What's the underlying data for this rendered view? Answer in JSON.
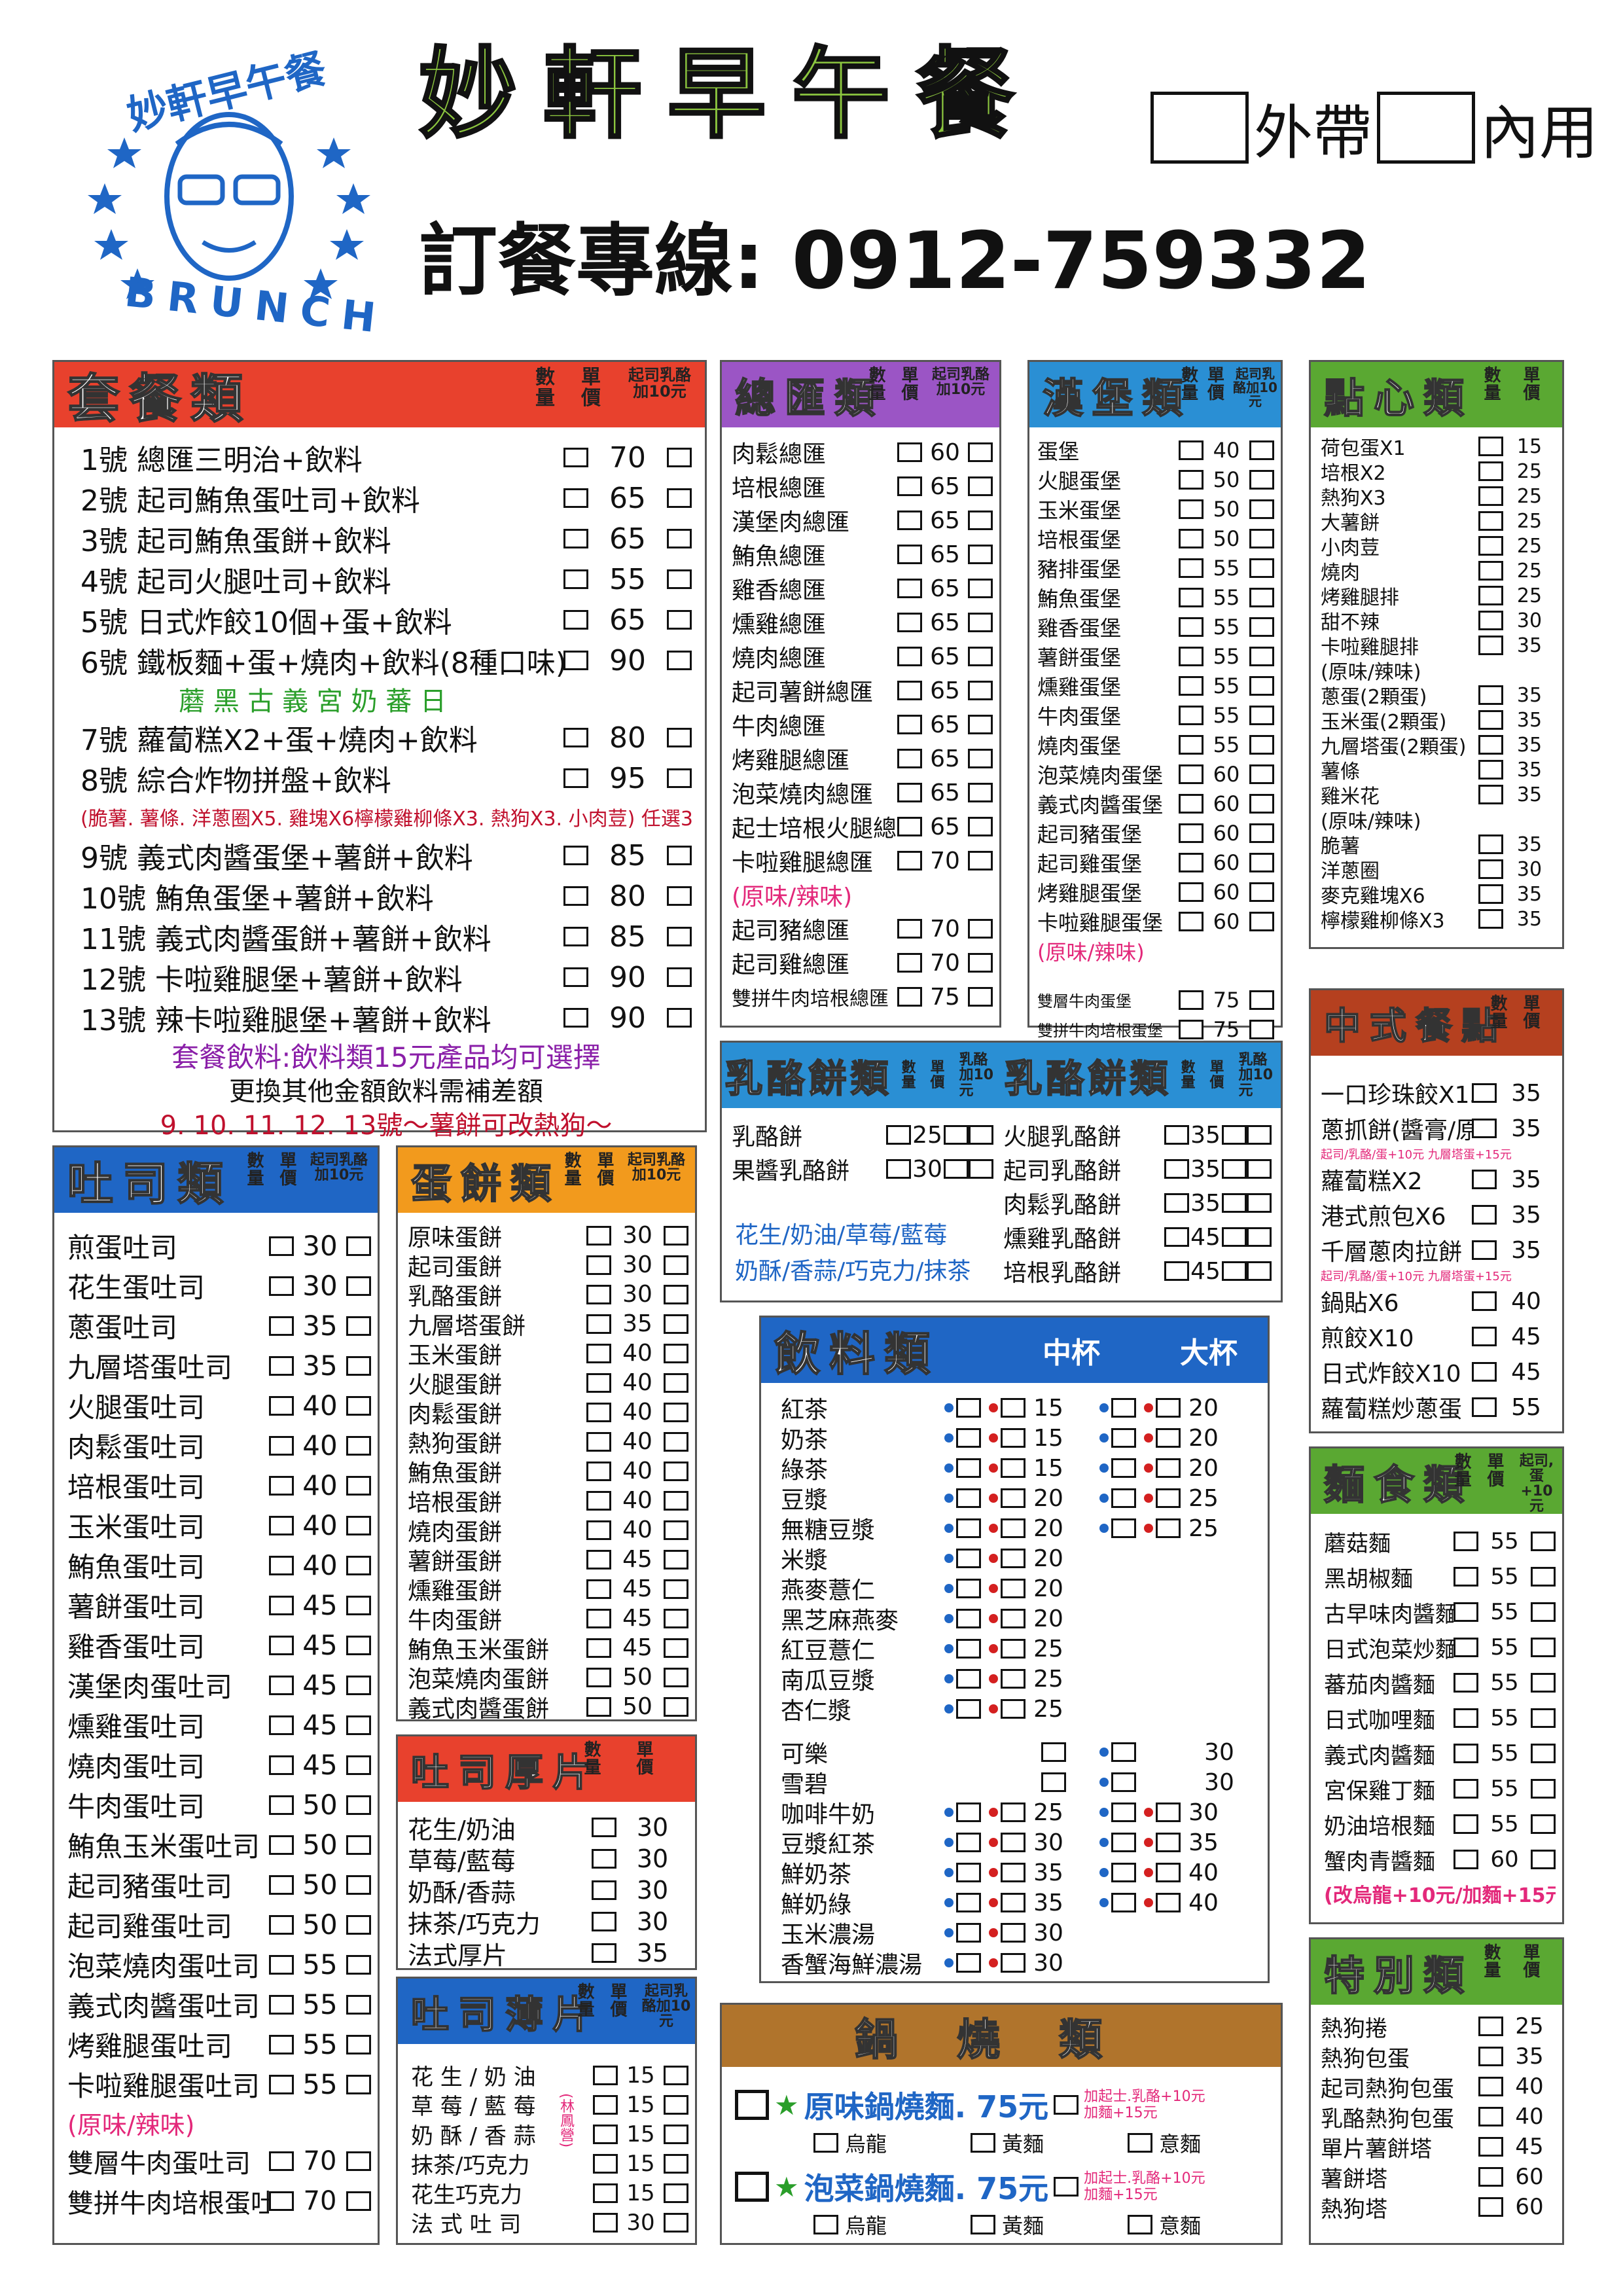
{
  "header": {
    "logo_text": "妙軒早午餐",
    "logo_sub": "BRUNCH",
    "title": "妙軒早午餐",
    "takeout": "外帶",
    "dinein": "內用",
    "hotline": "訂餐專線: 0912-759332"
  },
  "combo": {
    "title": "套餐類",
    "col_qty": "數量",
    "col_price": "單價",
    "col_cheese": "起司乳酪加10元",
    "items": [
      {
        "name": "1號  總匯三明治+飲料",
        "price": "70"
      },
      {
        "name": "2號  起司鮪魚蛋吐司+飲料",
        "price": "65"
      },
      {
        "name": "3號  起司鮪魚蛋餅+飲料",
        "price": "65"
      },
      {
        "name": "4號  起司火腿吐司+飲料",
        "price": "55"
      },
      {
        "name": "5號  日式炸餃10個+蛋+飲料",
        "price": "65"
      },
      {
        "name": "6號  鐵板麵+蛋+燒肉+飲料(8種口味)",
        "price": "90"
      },
      {
        "name": "7號  蘿蔔糕X2+蛋+燒肉+飲料",
        "price": "80"
      },
      {
        "name": "8號  綜合炸物拼盤+飲料",
        "price": "95"
      },
      {
        "name": "9號  義式肉醬蛋堡+薯餅+飲料",
        "price": "85"
      },
      {
        "name": "10號  鮪魚蛋堡+薯餅+飲料",
        "price": "80"
      },
      {
        "name": "11號  義式肉醬蛋餅+薯餅+飲料",
        "price": "85"
      },
      {
        "name": "12號  卡啦雞腿堡+薯餅+飲料",
        "price": "90"
      },
      {
        "name": "13號  辣卡啦雞腿堡+薯餅+飲料",
        "price": "90"
      }
    ],
    "note6": "蘑 黑 古 義 宮 奶 蕃 日",
    "note8": "(脆薯. 薯條. 洋蔥圈X5. 雞塊X6檸檬雞柳條X3. 熱狗X3. 小肉荳) 任選3樣",
    "foot1": "套餐飲料:飲料類15元產品均可選擇",
    "foot2": "更換其他金額飲料需補差額",
    "foot3": "9. 10. 11. 12. 13號～薯餅可改熱狗～"
  },
  "toast": {
    "title": "吐司類",
    "col_qty": "數量",
    "col_price": "單價",
    "col_cheese": "起司乳酪加10元",
    "items": [
      {
        "name": "煎蛋吐司",
        "price": "30"
      },
      {
        "name": "花生蛋吐司",
        "price": "30"
      },
      {
        "name": "蔥蛋吐司",
        "price": "35"
      },
      {
        "name": "九層塔蛋吐司",
        "price": "35"
      },
      {
        "name": "火腿蛋吐司",
        "price": "40"
      },
      {
        "name": "肉鬆蛋吐司",
        "price": "40"
      },
      {
        "name": "培根蛋吐司",
        "price": "40"
      },
      {
        "name": "玉米蛋吐司",
        "price": "40"
      },
      {
        "name": "鮪魚蛋吐司",
        "price": "40"
      },
      {
        "name": "薯餅蛋吐司",
        "price": "45"
      },
      {
        "name": "雞香蛋吐司",
        "price": "45"
      },
      {
        "name": "漢堡肉蛋吐司",
        "price": "45"
      },
      {
        "name": "燻雞蛋吐司",
        "price": "45"
      },
      {
        "name": "燒肉蛋吐司",
        "price": "45"
      },
      {
        "name": "牛肉蛋吐司",
        "price": "50"
      },
      {
        "name": "鮪魚玉米蛋吐司",
        "price": "50"
      },
      {
        "name": "起司豬蛋吐司",
        "price": "50"
      },
      {
        "name": "起司雞蛋吐司",
        "price": "50"
      },
      {
        "name": "泡菜燒肉蛋吐司",
        "price": "55"
      },
      {
        "name": "義式肉醬蛋吐司",
        "price": "55"
      },
      {
        "name": "烤雞腿蛋吐司",
        "price": "55"
      },
      {
        "name": "卡啦雞腿蛋吐司",
        "price": "55"
      }
    ],
    "note": "(原味/辣味)",
    "extra": [
      {
        "name": "雙層牛肉蛋吐司",
        "price": "70"
      },
      {
        "name": "雙拼牛肉培根蛋吐司",
        "price": "70"
      }
    ]
  },
  "eggroll": {
    "title": "蛋餅類",
    "col_qty": "數量",
    "col_price": "單價",
    "col_cheese": "起司乳酪加10元",
    "items": [
      {
        "name": "原味蛋餅",
        "price": "30"
      },
      {
        "name": "起司蛋餅",
        "price": "30"
      },
      {
        "name": "乳酪蛋餅",
        "price": "30"
      },
      {
        "name": "九層塔蛋餅",
        "price": "35"
      },
      {
        "name": "玉米蛋餅",
        "price": "40"
      },
      {
        "name": "火腿蛋餅",
        "price": "40"
      },
      {
        "name": "肉鬆蛋餅",
        "price": "40"
      },
      {
        "name": "熱狗蛋餅",
        "price": "40"
      },
      {
        "name": "鮪魚蛋餅",
        "price": "40"
      },
      {
        "name": "培根蛋餅",
        "price": "40"
      },
      {
        "name": "燒肉蛋餅",
        "price": "40"
      },
      {
        "name": "薯餅蛋餅",
        "price": "45"
      },
      {
        "name": "燻雞蛋餅",
        "price": "45"
      },
      {
        "name": "牛肉蛋餅",
        "price": "45"
      },
      {
        "name": "鮪魚玉米蛋餅",
        "price": "45"
      },
      {
        "name": "泡菜燒肉蛋餅",
        "price": "50"
      },
      {
        "name": "義式肉醬蛋餅",
        "price": "50"
      }
    ]
  },
  "thick": {
    "title": "吐司厚片",
    "col_qty": "數量",
    "col_price": "單價",
    "items": [
      {
        "name": "花生/奶油",
        "price": "30"
      },
      {
        "name": "草莓/藍莓",
        "price": "30"
      },
      {
        "name": "奶酥/香蒜",
        "price": "30"
      },
      {
        "name": "抹茶/巧克力",
        "price": "30"
      },
      {
        "name": "法式厚片",
        "price": "35"
      }
    ]
  },
  "thin": {
    "title": "吐司薄片",
    "col_qty": "數量",
    "col_price": "單價",
    "col_cheese": "起司乳酪加10元",
    "side_note": "(林鳳營)",
    "items": [
      {
        "name": "花 生 / 奶 油",
        "price": "15"
      },
      {
        "name": "草 莓 / 藍 莓",
        "price": "15"
      },
      {
        "name": "奶 酥 / 香 蒜",
        "price": "15"
      },
      {
        "name": "抹茶/巧克力",
        "price": "15"
      },
      {
        "name": "花生巧克力",
        "price": "15"
      },
      {
        "name": "法 式 吐 司",
        "price": "30"
      }
    ]
  },
  "club": {
    "title": "總匯類",
    "col_qty": "數量",
    "col_price": "單價",
    "col_cheese": "起司乳酪加10元",
    "items": [
      {
        "name": "肉鬆總匯",
        "price": "60"
      },
      {
        "name": "培根總匯",
        "price": "65"
      },
      {
        "name": "漢堡肉總匯",
        "price": "65"
      },
      {
        "name": "鮪魚總匯",
        "price": "65"
      },
      {
        "name": "雞香總匯",
        "price": "65"
      },
      {
        "name": "燻雞總匯",
        "price": "65"
      },
      {
        "name": "燒肉總匯",
        "price": "65"
      },
      {
        "name": "起司薯餅總匯",
        "price": "65"
      },
      {
        "name": "牛肉總匯",
        "price": "65"
      },
      {
        "name": "烤雞腿總匯",
        "price": "65"
      },
      {
        "name": "泡菜燒肉總匯",
        "price": "65"
      },
      {
        "name": "起士培根火腿總匯",
        "price": "65"
      },
      {
        "name": "卡啦雞腿總匯",
        "price": "70"
      }
    ],
    "note": "(原味/辣味)",
    "extra": [
      {
        "name": "起司豬總匯",
        "price": "70"
      },
      {
        "name": "起司雞總匯",
        "price": "70"
      },
      {
        "name": "雙拼牛肉培根總匯",
        "price": "75"
      }
    ]
  },
  "burger": {
    "title": "漢堡類",
    "col_qty": "數量",
    "col_price": "單價",
    "col_cheese": "起司乳酪加10元",
    "items": [
      {
        "name": "蛋堡",
        "price": "40"
      },
      {
        "name": "火腿蛋堡",
        "price": "50"
      },
      {
        "name": "玉米蛋堡",
        "price": "50"
      },
      {
        "name": "培根蛋堡",
        "price": "50"
      },
      {
        "name": "豬排蛋堡",
        "price": "55"
      },
      {
        "name": "鮪魚蛋堡",
        "price": "55"
      },
      {
        "name": "雞香蛋堡",
        "price": "55"
      },
      {
        "name": "薯餅蛋堡",
        "price": "55"
      },
      {
        "name": "燻雞蛋堡",
        "price": "55"
      },
      {
        "name": "牛肉蛋堡",
        "price": "55"
      },
      {
        "name": "燒肉蛋堡",
        "price": "55"
      },
      {
        "name": "泡菜燒肉蛋堡",
        "price": "60"
      },
      {
        "name": "義式肉醬蛋堡",
        "price": "60"
      },
      {
        "name": "起司豬蛋堡",
        "price": "60"
      },
      {
        "name": "起司雞蛋堡",
        "price": "60"
      },
      {
        "name": "烤雞腿蛋堡",
        "price": "60"
      },
      {
        "name": "卡啦雞腿蛋堡",
        "price": "60"
      }
    ],
    "note": "(原味/辣味)",
    "extra": [
      {
        "name": "雙層牛肉蛋堡",
        "price": "75"
      },
      {
        "name": "雙拼牛肉培根蛋堡",
        "price": "75"
      }
    ]
  },
  "snack": {
    "title": "點心類",
    "col_qty": "數量",
    "col_price": "單價",
    "items": [
      {
        "name": "荷包蛋X1",
        "price": "15"
      },
      {
        "name": "培根X2",
        "price": "25"
      },
      {
        "name": "熱狗X3",
        "price": "25"
      },
      {
        "name": "大薯餅",
        "price": "25"
      },
      {
        "name": "小肉荳",
        "price": "25"
      },
      {
        "name": "燒肉",
        "price": "25"
      },
      {
        "name": "烤雞腿排",
        "price": "25"
      },
      {
        "name": "甜不辣",
        "price": "30"
      },
      {
        "name": "卡啦雞腿排",
        "price": "35"
      },
      {
        "name": "(原味/辣味)",
        "price": ""
      },
      {
        "name": "蔥蛋(2顆蛋)",
        "price": "35"
      },
      {
        "name": "玉米蛋(2顆蛋)",
        "price": "35"
      },
      {
        "name": "九層塔蛋(2顆蛋)",
        "price": "35"
      },
      {
        "name": "薯條",
        "price": "35"
      },
      {
        "name": "雞米花",
        "price": "35"
      },
      {
        "name": "(原味/辣味)",
        "price": ""
      },
      {
        "name": "脆薯",
        "price": "35"
      },
      {
        "name": "洋蔥圈",
        "price": "30"
      },
      {
        "name": "麥克雞塊X6",
        "price": "35"
      },
      {
        "name": "檸檬雞柳條X3",
        "price": "35"
      }
    ]
  },
  "chinese": {
    "title": "中式餐點",
    "col_qty": "數量",
    "col_price": "單價",
    "items": [
      {
        "name": "一口珍珠餃X15",
        "price": "35",
        "sub": ""
      },
      {
        "name": "蔥抓餅(醬膏/原味)",
        "price": "35",
        "sub": "起司/乳酪/蛋+10元   九層塔蛋+15元"
      },
      {
        "name": "蘿蔔糕X2",
        "price": "35",
        "sub": ""
      },
      {
        "name": "港式煎包X6",
        "price": "35",
        "sub": ""
      },
      {
        "name": "千層蔥肉拉餅",
        "price": "35",
        "sub": "起司/乳酪/蛋+10元   九層塔蛋+15元"
      },
      {
        "name": "鍋貼X6",
        "price": "40",
        "sub": ""
      },
      {
        "name": "煎餃X10",
        "price": "45",
        "sub": ""
      },
      {
        "name": "日式炸餃X10",
        "price": "45",
        "sub": ""
      },
      {
        "name": "蘿蔔糕炒蔥蛋",
        "price": "55",
        "sub": ""
      }
    ]
  },
  "noodle": {
    "title": "麵食類",
    "col_qty": "數量",
    "col_price": "單價",
    "col_cheese": "起司,蛋+10元",
    "items": [
      {
        "name": "蘑菇麵",
        "price": "55"
      },
      {
        "name": "黑胡椒麵",
        "price": "55"
      },
      {
        "name": "古早味肉醬麵",
        "price": "55"
      },
      {
        "name": "日式泡菜炒麵",
        "price": "55"
      },
      {
        "name": "蕃茄肉醬麵",
        "price": "55"
      },
      {
        "name": "日式咖哩麵",
        "price": "55"
      },
      {
        "name": "義式肉醬麵",
        "price": "55"
      },
      {
        "name": "宮保雞丁麵",
        "price": "55"
      },
      {
        "name": "奶油培根麵",
        "price": "55"
      },
      {
        "name": "蟹肉青醬麵",
        "price": "60"
      }
    ],
    "note": "(改烏龍+10元/加麵+15元)"
  },
  "special": {
    "title": "特別類",
    "col_qty": "數量",
    "col_price": "單價",
    "items": [
      {
        "name": "熱狗捲",
        "price": "25"
      },
      {
        "name": "熱狗包蛋",
        "price": "35"
      },
      {
        "name": "起司熱狗包蛋",
        "price": "40"
      },
      {
        "name": "乳酪熱狗包蛋",
        "price": "40"
      },
      {
        "name": "單片薯餅塔",
        "price": "45"
      },
      {
        "name": "薯餅塔",
        "price": "60"
      },
      {
        "name": "熱狗塔",
        "price": "60"
      }
    ]
  },
  "pancake": {
    "title": "乳酪餅類",
    "col_qty": "數量",
    "col_price": "單價",
    "col_cheese": "乳酪加10元",
    "left": [
      {
        "name": "乳酪餅",
        "price": "25"
      },
      {
        "name": "果醬乳酪餅",
        "price": "30"
      }
    ],
    "right": [
      {
        "name": "火腿乳酪餅",
        "price": "35"
      },
      {
        "name": "起司乳酪餅",
        "price": "35"
      },
      {
        "name": "肉鬆乳酪餅",
        "price": "35"
      },
      {
        "name": "燻雞乳酪餅",
        "price": "45"
      },
      {
        "name": "培根乳酪餅",
        "price": "45"
      }
    ],
    "flavors1": "花生/奶油/草莓/藍莓",
    "flavors2": "奶酥/香蒜/巧克力/抹茶"
  },
  "drink": {
    "title": "飲料類",
    "col_mid": "中杯",
    "col_large": "大杯",
    "items": [
      {
        "name": "紅茶",
        "mid": "15",
        "large": "20"
      },
      {
        "name": "奶茶",
        "mid": "15",
        "large": "20"
      },
      {
        "name": "綠茶",
        "mid": "15",
        "large": "20"
      },
      {
        "name": "豆漿",
        "mid": "20",
        "large": "25"
      },
      {
        "name": "無糖豆漿",
        "mid": "20",
        "large": "25"
      },
      {
        "name": "米漿",
        "mid": "20",
        "large": ""
      },
      {
        "name": "燕麥薏仁",
        "mid": "20",
        "large": ""
      },
      {
        "name": "黑芝麻燕麥",
        "mid": "20",
        "large": ""
      },
      {
        "name": "紅豆薏仁",
        "mid": "25",
        "large": ""
      },
      {
        "name": "南瓜豆漿",
        "mid": "25",
        "large": ""
      },
      {
        "name": "杏仁漿",
        "mid": "25",
        "large": ""
      },
      {
        "name": "可樂",
        "mid": "",
        "large": "30"
      },
      {
        "name": "雪碧",
        "mid": "",
        "large": "30"
      },
      {
        "name": "咖啡牛奶",
        "mid": "25",
        "large": "30"
      },
      {
        "name": "豆漿紅茶",
        "mid": "30",
        "large": "35"
      },
      {
        "name": "鮮奶茶",
        "mid": "35",
        "large": "40"
      },
      {
        "name": "鮮奶綠",
        "mid": "35",
        "large": "40"
      },
      {
        "name": "玉米濃湯",
        "mid": "30",
        "large": ""
      },
      {
        "name": "香蟹海鮮濃湯",
        "mid": "30",
        "large": ""
      }
    ]
  },
  "pot": {
    "title": "鍋燒類",
    "items": [
      {
        "name": "原味鍋燒麵. 75元",
        "addon1": "加起士.乳酪+10元",
        "addon2": "加麵+15元"
      },
      {
        "name": "泡菜鍋燒麵. 75元",
        "addon1": "加起士.乳酪+10元",
        "addon2": "加麵+15元"
      }
    ],
    "opts": [
      "烏龍",
      "黃麵",
      "意麵"
    ]
  }
}
